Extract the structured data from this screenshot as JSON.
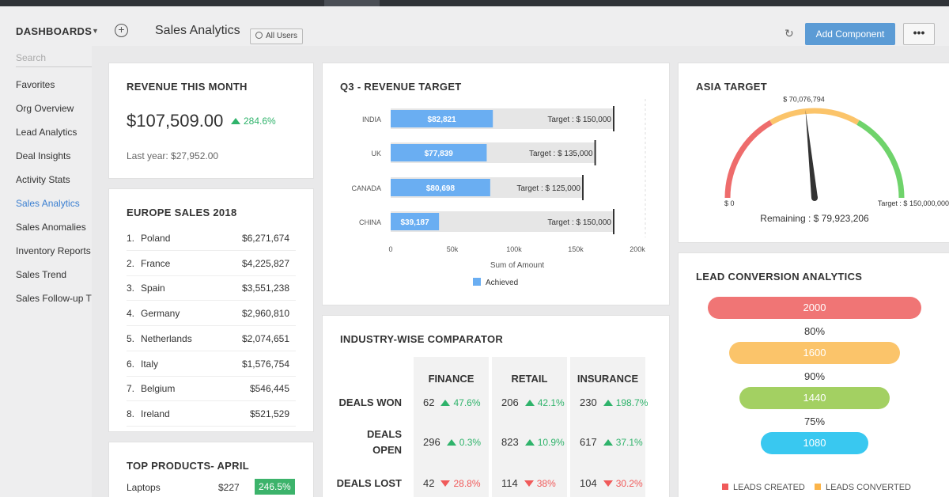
{
  "header": {
    "dashboards_label": "DASHBOARDS",
    "page_title": "Sales Analytics",
    "scope_label": "All Users",
    "add_component_label": "Add Component",
    "more_label": "•••"
  },
  "sidebar": {
    "search_placeholder": "Search",
    "items": [
      {
        "label": "Favorites",
        "active": false
      },
      {
        "label": "Org Overview",
        "active": false
      },
      {
        "label": "Lead Analytics",
        "active": false
      },
      {
        "label": "Deal Insights",
        "active": false
      },
      {
        "label": "Activity Stats",
        "active": false
      },
      {
        "label": "Sales Analytics",
        "active": true
      },
      {
        "label": "Sales Anomalies",
        "active": false
      },
      {
        "label": "Inventory Reports",
        "active": false
      },
      {
        "label": "Sales Trend",
        "active": false
      },
      {
        "label": "Sales Follow-up T",
        "active": false
      }
    ]
  },
  "revenue": {
    "title": "REVENUE THIS MONTH",
    "value": "$107,509.00",
    "change": "284.6%",
    "last_year": "Last year: $27,952.00"
  },
  "europe": {
    "title": "EUROPE SALES 2018",
    "rows": [
      {
        "rank": "1.",
        "country": "Poland",
        "amount": "$6,271,674"
      },
      {
        "rank": "2.",
        "country": "France",
        "amount": "$4,225,827"
      },
      {
        "rank": "3.",
        "country": "Spain",
        "amount": "$3,551,238"
      },
      {
        "rank": "4.",
        "country": "Germany",
        "amount": "$2,960,810"
      },
      {
        "rank": "5.",
        "country": "Netherlands",
        "amount": "$2,074,651"
      },
      {
        "rank": "6.",
        "country": "Italy",
        "amount": "$1,576,754"
      },
      {
        "rank": "7.",
        "country": "Belgium",
        "amount": "$546,445"
      },
      {
        "rank": "8.",
        "country": "Ireland",
        "amount": "$521,529"
      }
    ]
  },
  "top_products": {
    "title": "TOP PRODUCTS- APRIL",
    "rows": [
      {
        "name": "Laptops",
        "price": "$227",
        "change": "246.5%"
      }
    ]
  },
  "q3": {
    "title": "Q3 - REVENUE TARGET",
    "xlabel": "Sum of Amount",
    "legend_label": "Achieved",
    "achieved_color": "#6aaef2",
    "target_color": "#e6e6e6",
    "x_ticks": [
      "0",
      "50k",
      "100k",
      "150k",
      "200k"
    ]
  },
  "chart_data": {
    "type": "bar",
    "orientation": "horizontal",
    "title": "Q3 - REVENUE TARGET",
    "xlabel": "Sum of Amount",
    "ylabel": "",
    "xlim": [
      0,
      200000
    ],
    "categories": [
      "INDIA",
      "UK",
      "CANADA",
      "CHINA"
    ],
    "series": [
      {
        "name": "Achieved",
        "values": [
          82821,
          77839,
          80698,
          39187
        ],
        "labels": [
          "$82,821",
          "$77,839",
          "$80,698",
          "$39,187"
        ]
      }
    ],
    "targets": [
      150000,
      135000,
      125000,
      150000
    ],
    "target_labels": [
      "Target : $ 150,000",
      "Target : $ 135,000",
      "Target : $ 125,000",
      "Target : $ 150,000"
    ],
    "legend": "bottom-center",
    "grid": false
  },
  "asia": {
    "title": "ASIA TARGET",
    "value_label": "$ 70,076,794",
    "value": 70076794,
    "max": 150000000,
    "min_label": "$ 0",
    "max_label": "Target : $ 150,000,000",
    "remaining": "Remaining : $ 79,923,206"
  },
  "lead": {
    "title": "LEAD CONVERSION ANALYTICS",
    "stages": [
      {
        "value": "2000",
        "color": "#f07575"
      },
      {
        "value": "1600",
        "color": "#fbc46a"
      },
      {
        "value": "1440",
        "color": "#a3d062"
      },
      {
        "value": "1080",
        "color": "#39c8f0"
      }
    ],
    "rates": [
      "80%",
      "90%",
      "75%"
    ],
    "legend": [
      {
        "label": "LEADS CREATED",
        "color": "#f05a5a"
      },
      {
        "label": "LEADS CONVERTED",
        "color": "#fbb44a"
      }
    ]
  },
  "industry": {
    "title": "INDUSTRY-WISE COMPARATOR",
    "columns": [
      "FINANCE",
      "RETAIL",
      "INSURANCE"
    ],
    "rows": [
      {
        "label_line1": "DEALS WON",
        "label_line2": "",
        "cells": [
          {
            "value": "62",
            "pct": "47.6%",
            "dir": "up"
          },
          {
            "value": "206",
            "pct": "42.1%",
            "dir": "up"
          },
          {
            "value": "230",
            "pct": "198.7%",
            "dir": "up"
          }
        ]
      },
      {
        "label_line1": "DEALS",
        "label_line2": "OPEN",
        "cells": [
          {
            "value": "296",
            "pct": "0.3%",
            "dir": "up"
          },
          {
            "value": "823",
            "pct": "10.9%",
            "dir": "up"
          },
          {
            "value": "617",
            "pct": "37.1%",
            "dir": "up"
          }
        ]
      },
      {
        "label_line1": "DEALS LOST",
        "label_line2": "",
        "cells": [
          {
            "value": "42",
            "pct": "28.8%",
            "dir": "down"
          },
          {
            "value": "114",
            "pct": "38%",
            "dir": "down"
          },
          {
            "value": "104",
            "pct": "30.2%",
            "dir": "down"
          }
        ]
      }
    ]
  }
}
